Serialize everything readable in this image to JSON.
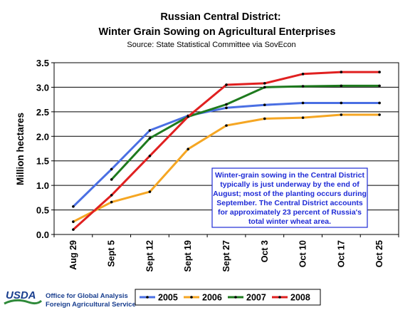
{
  "header": {
    "title_line1": "Russian Central District:",
    "title_line2": "Winter Grain Sowing  on Agricultural Enterprises",
    "source": "Source:  State Statistical Committee via SovEcon"
  },
  "chart_data": {
    "type": "line",
    "categories": [
      "Aug 29",
      "Sept 5",
      "Sept 12",
      "Sept 19",
      "Sept 27",
      "Oct 3",
      "Oct 10",
      "Oct 17",
      "Oct 25"
    ],
    "ylabel": "Million hectares",
    "xlabel": "",
    "ylim": [
      0,
      3.5
    ],
    "yticks": [
      "0.0",
      "0.5",
      "1.0",
      "1.5",
      "2.0",
      "2.5",
      "3.0",
      "3.5"
    ],
    "grid": "horizontal",
    "legend_position": "bottom",
    "series": [
      {
        "name": "2005",
        "color": "#4a6fe3",
        "values": [
          0.57,
          1.33,
          2.12,
          2.42,
          2.58,
          2.64,
          2.68,
          2.68,
          2.68
        ]
      },
      {
        "name": "2006",
        "color": "#f5a623",
        "values": [
          0.26,
          0.66,
          0.87,
          1.74,
          2.22,
          2.36,
          2.38,
          2.44,
          2.44
        ]
      },
      {
        "name": "2007",
        "color": "#1e7a1e",
        "values": [
          null,
          1.12,
          1.96,
          2.4,
          2.65,
          3.0,
          3.02,
          3.03,
          3.03
        ]
      },
      {
        "name": "2008",
        "color": "#e02020",
        "values": [
          0.1,
          0.8,
          1.6,
          2.4,
          3.05,
          3.08,
          3.27,
          3.31,
          3.31
        ]
      }
    ]
  },
  "annotation": {
    "lines": [
      "Winter-grain sowing in the Central District",
      "typically is just underway by the end of",
      "August; most of the planting occurs during",
      "September.  The Central District accounts",
      "for approximately 23 percent of Russia's",
      "total winter wheat area."
    ]
  },
  "footer": {
    "logo_text": "USDA",
    "line1": "Office for Global Analysis",
    "line2": "Foreign Agricultural Service"
  }
}
